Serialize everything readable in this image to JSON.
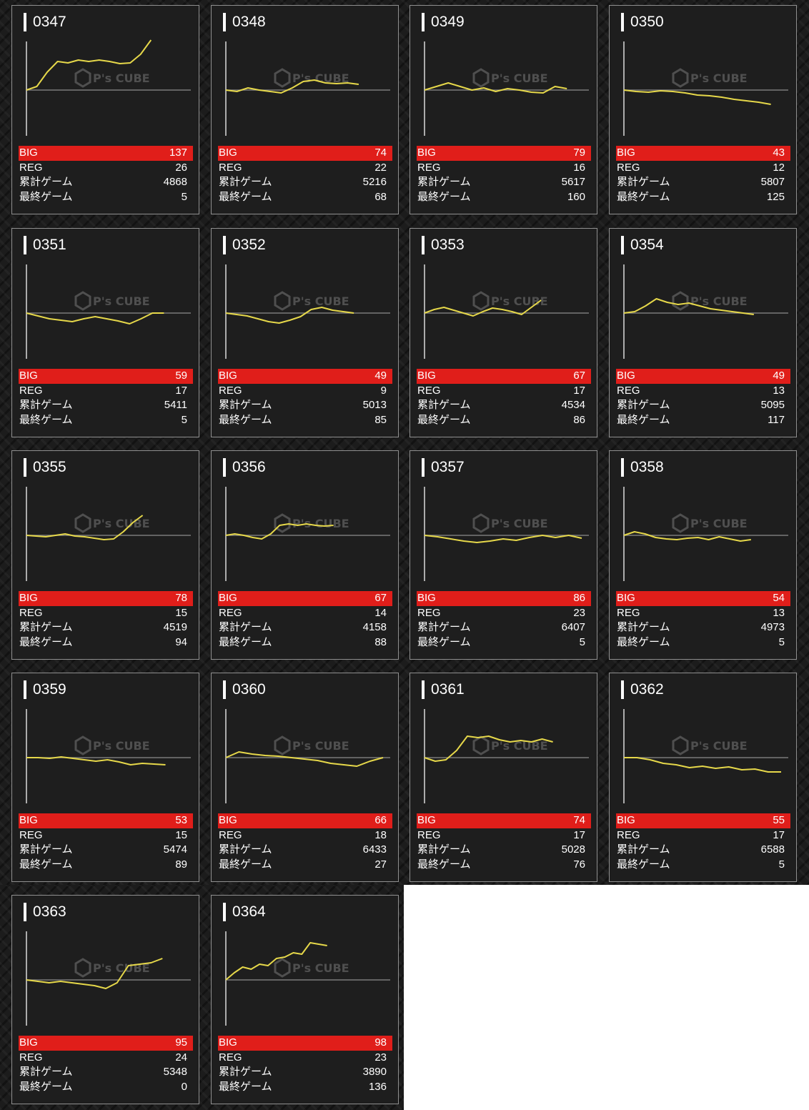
{
  "stats_labels": {
    "big": "BIG",
    "reg": "REG",
    "total": "累計ゲーム",
    "last": "最終ゲーム"
  },
  "watermark": {
    "brand": "P's CUBE"
  },
  "colors": {
    "accent_big": "#e01e1a",
    "line": "#e6d84a",
    "card_bg": "#1e1e1e"
  },
  "machines": [
    {
      "id": "0347",
      "big": "137",
      "reg": "26",
      "total": "4868",
      "last": "5",
      "chart_data": {
        "type": "line",
        "values": [
          0,
          5,
          25,
          40,
          38,
          42,
          40,
          42,
          40,
          37,
          38,
          50,
          70
        ]
      }
    },
    {
      "id": "0348",
      "big": "74",
      "reg": "22",
      "total": "5216",
      "last": "68",
      "chart_data": {
        "type": "line",
        "values": [
          0,
          -2,
          3,
          0,
          -2,
          -4,
          3,
          12,
          14,
          10,
          9,
          10,
          8
        ]
      }
    },
    {
      "id": "0349",
      "big": "79",
      "reg": "16",
      "total": "5617",
      "last": "160",
      "chart_data": {
        "type": "line",
        "values": [
          0,
          5,
          10,
          5,
          0,
          3,
          -2,
          2,
          0,
          -3,
          -4,
          5,
          2
        ]
      }
    },
    {
      "id": "0350",
      "big": "43",
      "reg": "12",
      "total": "5807",
      "last": "125",
      "chart_data": {
        "type": "line",
        "values": [
          0,
          -2,
          -3,
          -1,
          -2,
          -4,
          -7,
          -8,
          -10,
          -13,
          -15,
          -17,
          -20
        ]
      }
    },
    {
      "id": "0351",
      "big": "59",
      "reg": "17",
      "total": "5411",
      "last": "5",
      "chart_data": {
        "type": "line",
        "values": [
          0,
          -4,
          -8,
          -10,
          -12,
          -8,
          -5,
          -8,
          -11,
          -15,
          -8,
          0,
          0
        ]
      }
    },
    {
      "id": "0352",
      "big": "49",
      "reg": "9",
      "total": "5013",
      "last": "85",
      "chart_data": {
        "type": "line",
        "values": [
          0,
          -2,
          -4,
          -8,
          -12,
          -14,
          -10,
          -5,
          5,
          8,
          4,
          2,
          0
        ]
      }
    },
    {
      "id": "0353",
      "big": "67",
      "reg": "17",
      "total": "4534",
      "last": "86",
      "chart_data": {
        "type": "line",
        "values": [
          0,
          5,
          8,
          4,
          0,
          -4,
          2,
          7,
          5,
          2,
          -2,
          8,
          18
        ]
      }
    },
    {
      "id": "0354",
      "big": "49",
      "reg": "13",
      "total": "5095",
      "last": "117",
      "chart_data": {
        "type": "line",
        "values": [
          0,
          2,
          10,
          20,
          15,
          12,
          14,
          10,
          6,
          4,
          2,
          0,
          -2
        ]
      }
    },
    {
      "id": "0355",
      "big": "78",
      "reg": "15",
      "total": "4519",
      "last": "94",
      "chart_data": {
        "type": "line",
        "values": [
          0,
          -1,
          -2,
          0,
          2,
          -1,
          -2,
          -4,
          -6,
          -5,
          5,
          18,
          28
        ]
      }
    },
    {
      "id": "0356",
      "big": "67",
      "reg": "14",
      "total": "4158",
      "last": "88",
      "chart_data": {
        "type": "line",
        "values": [
          0,
          2,
          0,
          -3,
          -5,
          2,
          14,
          16,
          14,
          16,
          14,
          13,
          14
        ]
      }
    },
    {
      "id": "0357",
      "big": "86",
      "reg": "23",
      "total": "6407",
      "last": "5",
      "chart_data": {
        "type": "line",
        "values": [
          0,
          -2,
          -5,
          -8,
          -10,
          -8,
          -5,
          -7,
          -3,
          0,
          -3,
          0,
          -4
        ]
      }
    },
    {
      "id": "0358",
      "big": "54",
      "reg": "13",
      "total": "4973",
      "last": "5",
      "chart_data": {
        "type": "line",
        "values": [
          0,
          5,
          2,
          -3,
          -5,
          -6,
          -4,
          -3,
          -6,
          -2,
          -5,
          -8,
          -6
        ]
      }
    },
    {
      "id": "0359",
      "big": "53",
      "reg": "15",
      "total": "5474",
      "last": "89",
      "chart_data": {
        "type": "line",
        "values": [
          0,
          0,
          -1,
          1,
          -1,
          -3,
          -5,
          -3,
          -6,
          -10,
          -8,
          -9,
          -10
        ]
      }
    },
    {
      "id": "0360",
      "big": "66",
      "reg": "18",
      "total": "6433",
      "last": "27",
      "chart_data": {
        "type": "line",
        "values": [
          0,
          8,
          5,
          3,
          2,
          0,
          -2,
          -4,
          -8,
          -10,
          -12,
          -5,
          0
        ]
      }
    },
    {
      "id": "0361",
      "big": "74",
      "reg": "17",
      "total": "5028",
      "last": "76",
      "chart_data": {
        "type": "line",
        "values": [
          0,
          -5,
          -3,
          10,
          30,
          28,
          30,
          25,
          22,
          24,
          22,
          26,
          22
        ]
      }
    },
    {
      "id": "0362",
      "big": "55",
      "reg": "17",
      "total": "6588",
      "last": "5",
      "chart_data": {
        "type": "line",
        "values": [
          0,
          0,
          -3,
          -8,
          -10,
          -14,
          -12,
          -15,
          -13,
          -17,
          -16,
          -20,
          -20
        ]
      }
    },
    {
      "id": "0363",
      "big": "95",
      "reg": "24",
      "total": "5348",
      "last": "0",
      "chart_data": {
        "type": "line",
        "values": [
          0,
          -2,
          -4,
          -2,
          -4,
          -6,
          -8,
          -12,
          -4,
          20,
          22,
          24,
          30
        ]
      }
    },
    {
      "id": "0364",
      "big": "98",
      "reg": "23",
      "total": "3890",
      "last": "136",
      "chart_data": {
        "type": "line",
        "values": [
          0,
          10,
          18,
          15,
          22,
          20,
          30,
          32,
          38,
          36,
          52,
          50,
          48
        ]
      }
    }
  ]
}
